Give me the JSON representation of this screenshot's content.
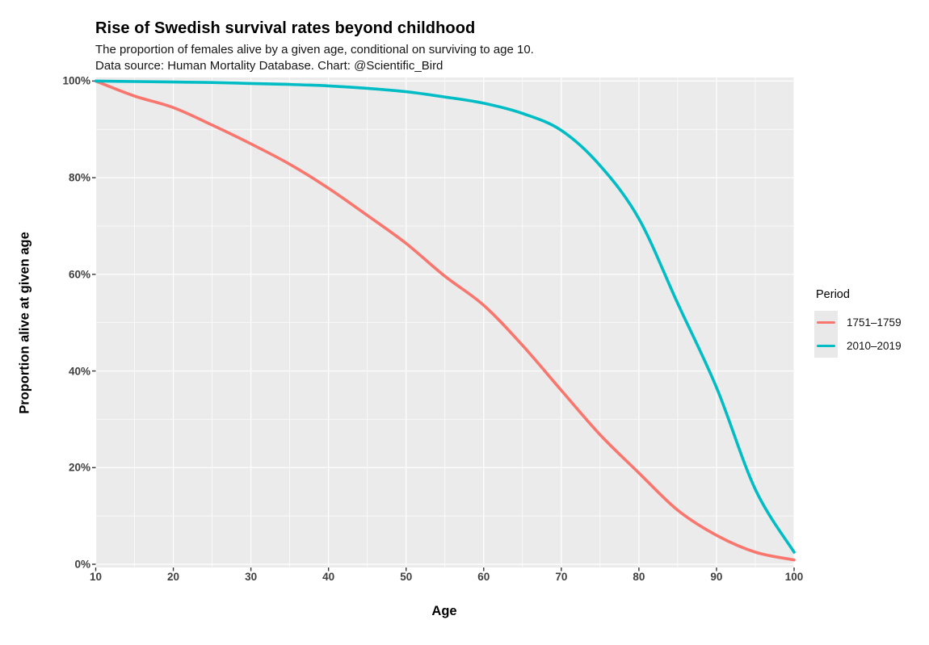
{
  "header": {
    "title": "Rise of Swedish survival rates beyond childhood",
    "subtitle_line1": "The proportion of females alive by a given age, conditional on surviving to age 10.",
    "subtitle_line2": "Data source: Human Mortality Database. Chart: @Scientific_Bird"
  },
  "colors": {
    "panel_background": "#EBEBEB",
    "gridline": "#FFFFFF",
    "tick_mark": "#333333",
    "axis_text": "#3F3F3F",
    "series_1751": "#F8766D",
    "series_2010": "#00BCC4"
  },
  "chart_data": {
    "type": "line",
    "title": "Rise of Swedish survival rates beyond childhood",
    "subtitle": "The proportion of females alive by a given age, conditional on surviving to age 10. Data source: Human Mortality Database. Chart: @Scientific_Bird",
    "xlabel": "Age",
    "ylabel": "Proportion alive at given age",
    "xlim": [
      10,
      100
    ],
    "ylim": [
      0,
      100
    ],
    "grid": true,
    "legend_position": "right",
    "legend_title": "Period",
    "x": [
      10,
      15,
      20,
      25,
      30,
      35,
      40,
      45,
      50,
      55,
      60,
      65,
      70,
      75,
      80,
      85,
      90,
      95,
      100
    ],
    "series": [
      {
        "name": "1751–1759",
        "color": "#F8766D",
        "values": [
          100,
          96.9,
          94.5,
          90.9,
          87.0,
          82.8,
          77.8,
          72.2,
          66.4,
          59.6,
          53.6,
          45.3,
          36.0,
          26.8,
          18.9,
          11.2,
          6.0,
          2.5,
          0.9
        ]
      },
      {
        "name": "2010–2019",
        "color": "#00BCC4",
        "values": [
          100,
          99.9,
          99.8,
          99.7,
          99.5,
          99.3,
          99.0,
          98.5,
          97.8,
          96.7,
          95.4,
          93.3,
          89.8,
          82.5,
          71.5,
          54.0,
          36.6,
          15.5,
          2.5
        ]
      }
    ],
    "x_tick_labels": [
      "10",
      "20",
      "30",
      "40",
      "50",
      "60",
      "70",
      "80",
      "90",
      "100"
    ],
    "x_tick_values": [
      10,
      20,
      30,
      40,
      50,
      60,
      70,
      80,
      90,
      100
    ],
    "y_tick_labels": [
      "0%",
      "20%",
      "40%",
      "60%",
      "80%",
      "100%"
    ],
    "y_tick_values": [
      0,
      20,
      40,
      60,
      80,
      100
    ]
  }
}
